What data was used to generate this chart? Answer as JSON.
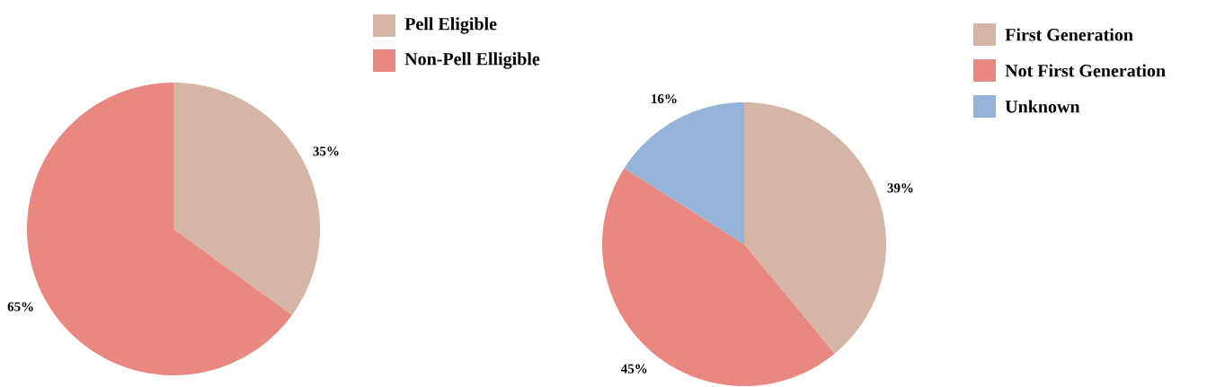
{
  "chart_data": [
    {
      "type": "pie",
      "categories": [
        "Pell Eligible",
        "Non-Pell Elligible"
      ],
      "values": [
        35,
        65
      ],
      "colors": [
        "#d5b5a5",
        "#e98881"
      ],
      "value_labels": [
        "35%",
        "65%"
      ],
      "legend": "top right"
    },
    {
      "type": "pie",
      "categories": [
        "First Generation",
        "Not First Generation",
        "Unknown"
      ],
      "values": [
        39,
        45,
        16
      ],
      "colors": [
        "#d5b5a5",
        "#e98881",
        "#93b3d9"
      ],
      "value_labels": [
        "39%",
        "45%",
        "16%"
      ],
      "legend": "top right"
    }
  ]
}
